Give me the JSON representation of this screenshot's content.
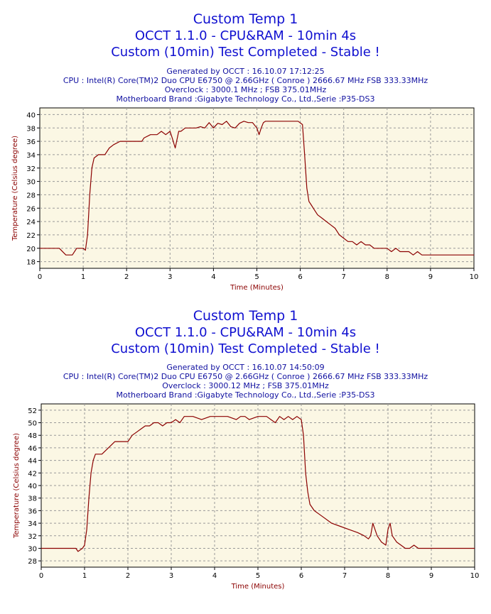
{
  "colors": {
    "title": "#1010d0",
    "info": "#1010a0",
    "line": "#8b0000",
    "plot_bg": "#fbf7e4",
    "grid": "#999999"
  },
  "charts": [
    {
      "title1": "Custom Temp 1",
      "title2": "OCCT 1.1.0 - CPU&RAM - 10min 4s",
      "title3": "Custom (10min) Test Completed - Stable !",
      "info": [
        "Generated by OCCT : 16.10.07 17:12:25",
        "CPU : Intel(R) Core(TM)2 Duo CPU     E6750  @ 2.66GHz ( Conroe ) 2666.67 MHz FSB 333.33MHz",
        "Overclock : 3000.1 MHz ; FSB 375.01MHz",
        "Motherboard Brand :Gigabyte Technology Co., Ltd.,Serie :P35-DS3"
      ]
    },
    {
      "title1": "Custom Temp 1",
      "title2": "OCCT 1.1.0 - CPU&RAM - 10min 4s",
      "title3": "Custom (10min) Test Completed - Stable !",
      "info": [
        "Generated by OCCT : 16.10.07 14:50:09",
        "CPU : Intel(R) Core(TM)2 Duo CPU     E6750  @ 2.66GHz ( Conroe ) 2666.67 MHz FSB 333.33MHz",
        "Overclock : 3000.12 MHz ; FSB 375.01MHz",
        "Motherboard Brand :Gigabyte Technology Co., Ltd.,Serie :P35-DS3"
      ]
    }
  ],
  "chart_data": [
    {
      "type": "line",
      "title": "Custom Temp 1",
      "xlabel": "Time (Minutes)",
      "ylabel": "Temperature (Celsius degree)",
      "xlim": [
        0,
        10
      ],
      "ylim": [
        17,
        41
      ],
      "xticks": [
        0,
        1,
        2,
        3,
        4,
        5,
        6,
        7,
        8,
        9,
        10
      ],
      "yticks": [
        18,
        20,
        22,
        24,
        26,
        28,
        30,
        32,
        34,
        36,
        38,
        40
      ],
      "grid": true,
      "series": [
        {
          "x": [
            0,
            0.4,
            0.45,
            0.6,
            0.75,
            0.85,
            1.0,
            1.05,
            1.1,
            1.15,
            1.2,
            1.25,
            1.35,
            1.5,
            1.6,
            1.7,
            1.85,
            2.0,
            2.2,
            2.35,
            2.4,
            2.55,
            2.7,
            2.8,
            2.9,
            3.0,
            3.05,
            3.12,
            3.2,
            3.25,
            3.35,
            3.5,
            3.6,
            3.7,
            3.8,
            3.9,
            4.0,
            4.1,
            4.2,
            4.3,
            4.4,
            4.5,
            4.6,
            4.7,
            4.8,
            4.9,
            5.0,
            5.05,
            5.1,
            5.15,
            5.2,
            5.3,
            5.4,
            5.5,
            5.6,
            5.8,
            5.95,
            6.05,
            6.1,
            6.15,
            6.2,
            6.25,
            6.3,
            6.4,
            6.5,
            6.6,
            6.7,
            6.8,
            6.9,
            7.0,
            7.1,
            7.2,
            7.3,
            7.4,
            7.5,
            7.6,
            7.7,
            7.8,
            7.9,
            8.0,
            8.1,
            8.2,
            8.3,
            8.4,
            8.5,
            8.6,
            8.7,
            8.8,
            9.0,
            9.5,
            10.0
          ],
          "y": [
            20,
            20,
            20,
            19,
            19,
            20,
            20,
            19.7,
            22,
            28,
            32,
            33.5,
            34,
            34,
            35,
            35.5,
            36,
            36,
            36,
            36,
            36.5,
            37,
            37,
            37.5,
            37,
            37.5,
            36.5,
            35,
            37.5,
            37.5,
            38,
            38,
            38,
            38.2,
            38,
            38.8,
            38,
            38.7,
            38.5,
            39,
            38.2,
            38,
            38.7,
            39,
            38.8,
            38.8,
            38,
            37,
            38,
            38.8,
            39,
            39,
            39,
            39,
            39,
            39,
            39,
            38.5,
            34,
            29,
            27,
            26.5,
            26,
            25,
            24.5,
            24,
            23.5,
            23,
            22,
            21.5,
            21,
            21,
            20.5,
            21,
            20.5,
            20.5,
            20,
            20,
            20,
            20,
            19.5,
            20,
            19.5,
            19.5,
            19.5,
            19,
            19.5,
            19,
            19,
            19,
            19
          ]
        }
      ]
    },
    {
      "type": "line",
      "title": "Custom Temp 1",
      "xlabel": "Time (Minutes)",
      "ylabel": "Temperature (Celsius degree)",
      "xlim": [
        0,
        10
      ],
      "ylim": [
        27,
        53
      ],
      "xticks": [
        0,
        1,
        2,
        3,
        4,
        5,
        6,
        7,
        8,
        9,
        10
      ],
      "yticks": [
        28,
        30,
        32,
        34,
        36,
        38,
        40,
        42,
        44,
        46,
        48,
        50,
        52
      ],
      "grid": true,
      "series": [
        {
          "x": [
            0,
            0.5,
            0.8,
            0.85,
            0.95,
            1.0,
            1.05,
            1.1,
            1.15,
            1.2,
            1.25,
            1.3,
            1.4,
            1.55,
            1.7,
            1.8,
            2.0,
            2.1,
            2.2,
            2.3,
            2.4,
            2.5,
            2.6,
            2.7,
            2.8,
            2.9,
            3.0,
            3.1,
            3.2,
            3.3,
            3.4,
            3.5,
            3.7,
            3.9,
            4.1,
            4.3,
            4.5,
            4.6,
            4.7,
            4.8,
            5.0,
            5.1,
            5.2,
            5.3,
            5.4,
            5.5,
            5.6,
            5.7,
            5.8,
            5.9,
            6.0,
            6.05,
            6.1,
            6.15,
            6.2,
            6.3,
            6.4,
            6.5,
            6.7,
            6.9,
            7.1,
            7.3,
            7.45,
            7.55,
            7.6,
            7.65,
            7.75,
            7.85,
            7.95,
            8.0,
            8.05,
            8.1,
            8.2,
            8.3,
            8.4,
            8.5,
            8.6,
            8.7,
            9.0,
            10.0
          ],
          "y": [
            30,
            30,
            30,
            29.5,
            30,
            30.5,
            33,
            38,
            42,
            44,
            45,
            45,
            45,
            46,
            47,
            47,
            47,
            48,
            48.5,
            49,
            49.5,
            49.5,
            50,
            50,
            49.5,
            50,
            50,
            50.5,
            50,
            51,
            51,
            51,
            50.5,
            51,
            51,
            51,
            50.5,
            51,
            51,
            50.5,
            51,
            51,
            51,
            50.5,
            50,
            51,
            50.5,
            51,
            50.5,
            51,
            50.5,
            48,
            42,
            39,
            37,
            36,
            35.5,
            35,
            34,
            33.5,
            33,
            32.5,
            32,
            31.5,
            32,
            34,
            32,
            31,
            30.5,
            33,
            34,
            32,
            31,
            30.5,
            30,
            30,
            30.5,
            30,
            30,
            30
          ]
        }
      ]
    }
  ]
}
